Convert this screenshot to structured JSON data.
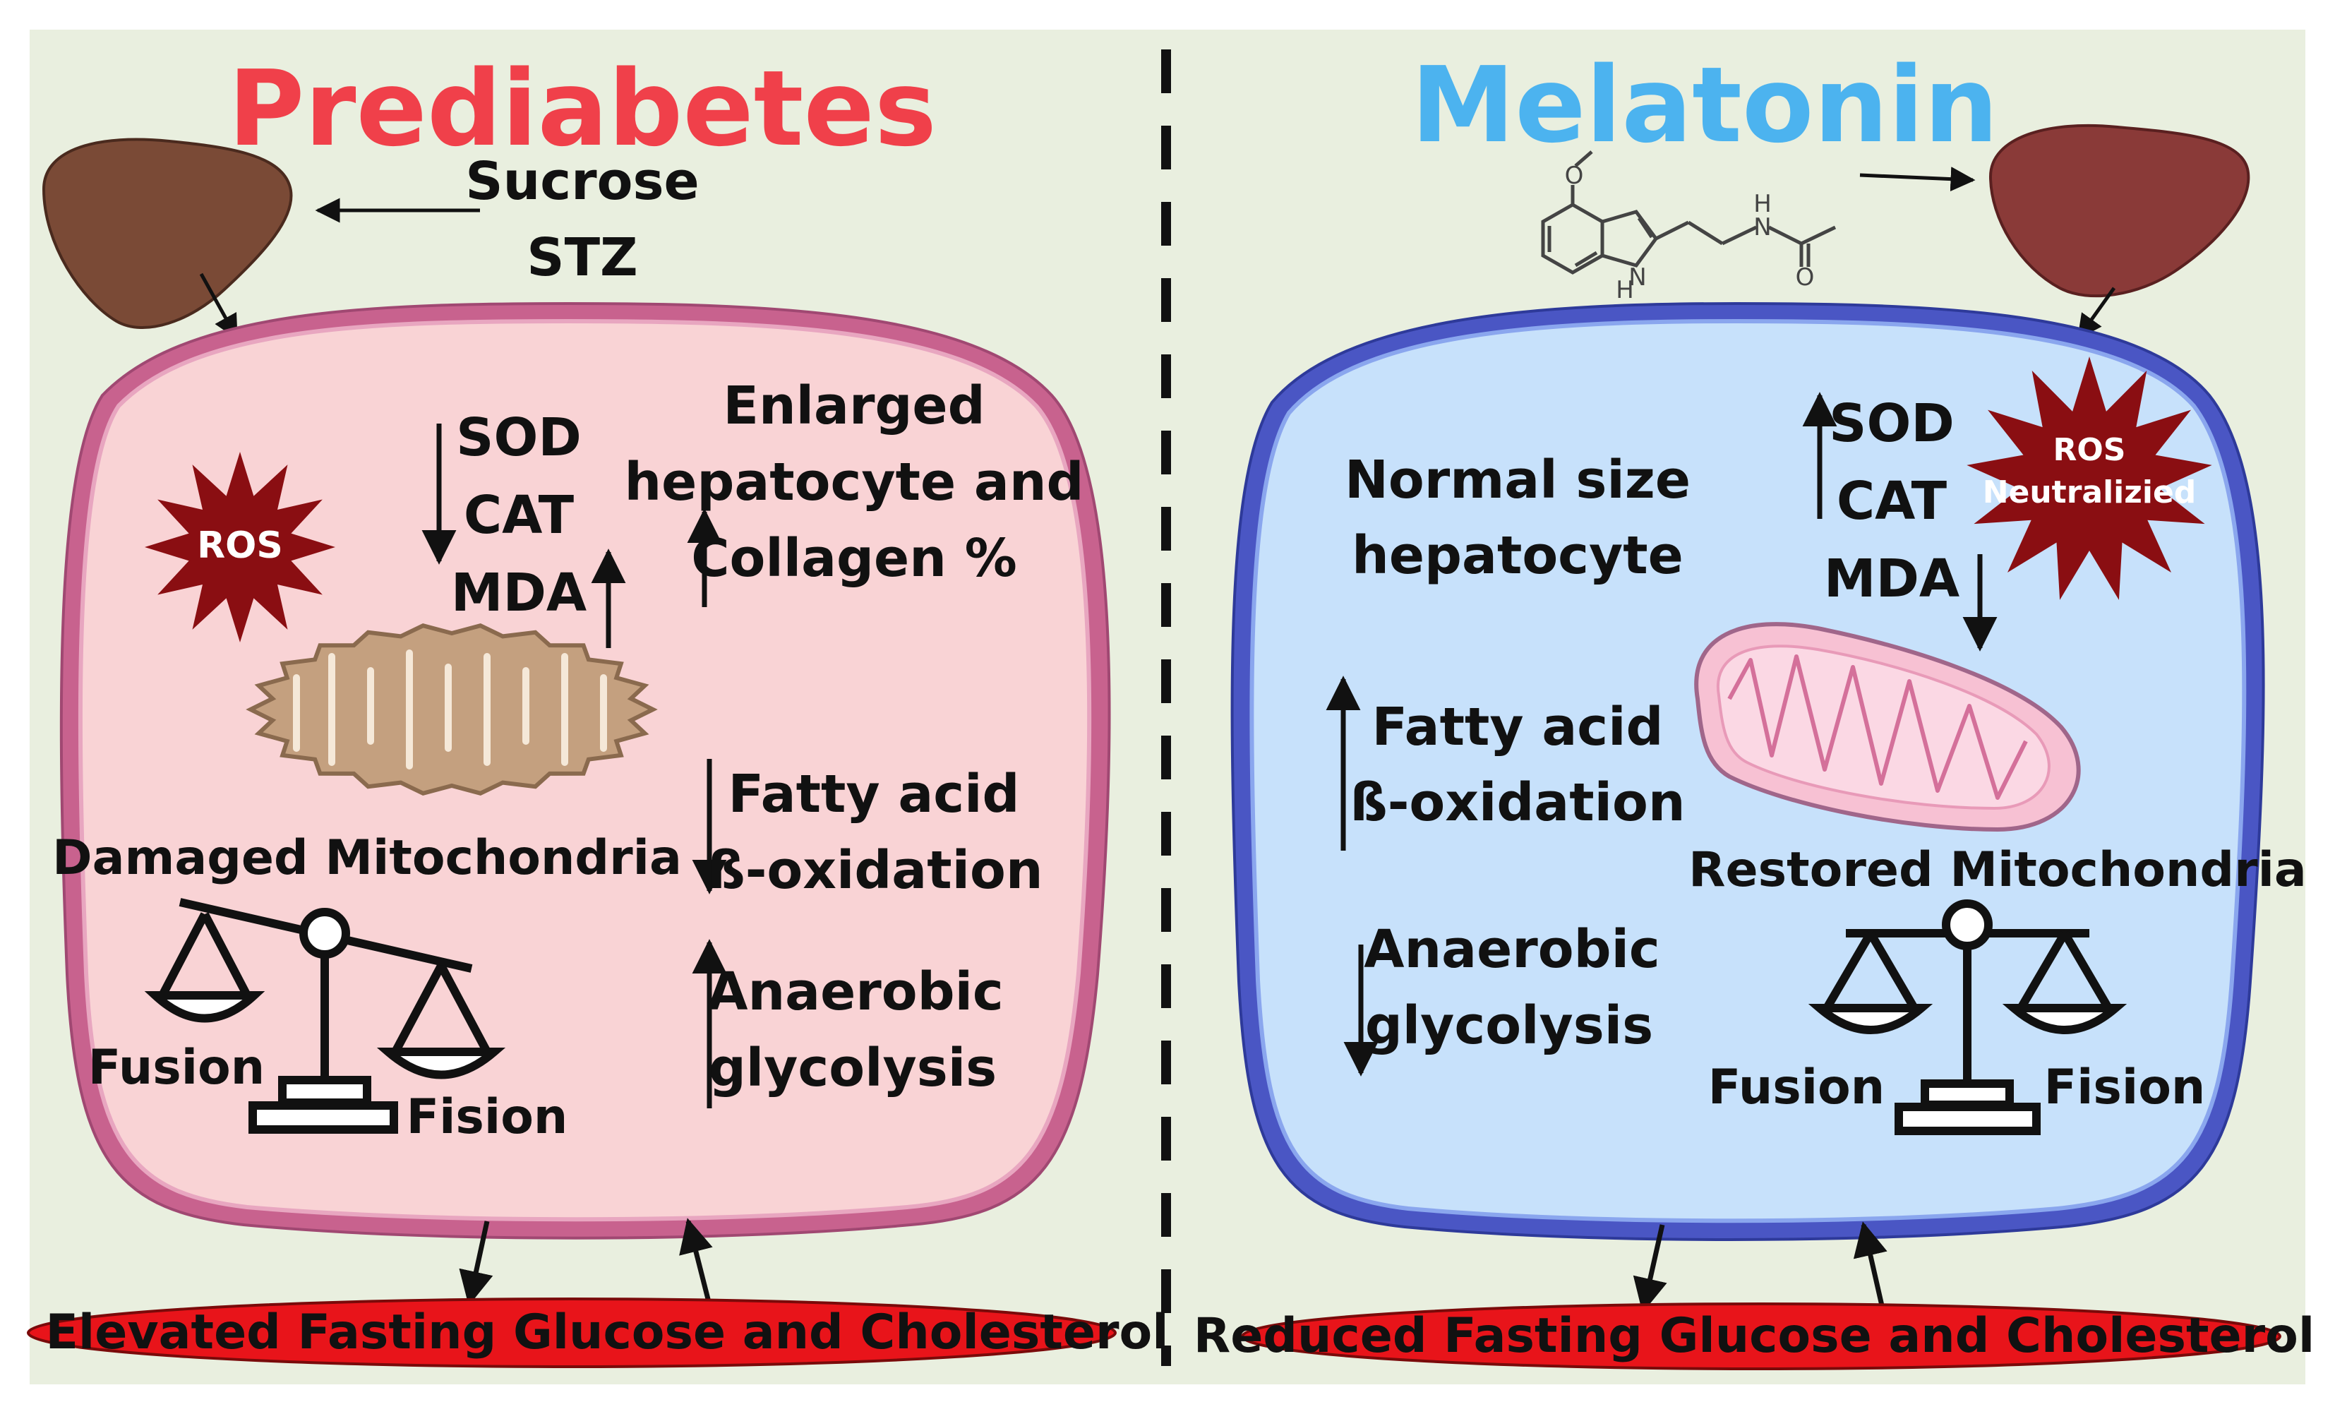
{
  "colors": {
    "background": "#e9efdf",
    "prediabetes_title": "#f0404a",
    "melatonin_title": "#4cb3ef",
    "left_cell_fill": "#f9d3d5",
    "left_cell_border": "#c8628e",
    "right_cell_fill": "#c7e1fb",
    "right_cell_border": "#4a56c4",
    "liver": "#7a4a36",
    "ros_star": "#8a0e12",
    "damaged_mito": "#c4a07f",
    "restored_mito": "#f7c1d3",
    "bar_fill": "#e8141a",
    "text": "#111111"
  },
  "left": {
    "title": "Prediabetes",
    "inducers": [
      "Sucrose",
      "STZ"
    ],
    "ros_label": "ROS",
    "markers": [
      "SOD",
      "CAT",
      "MDA"
    ],
    "hepatocyte": [
      "Enlarged",
      "hepatocyte and",
      "Collagen %"
    ],
    "mito_label": "Damaged Mitochondria",
    "fatty_acid": [
      "Fatty acid",
      "ß-oxidation"
    ],
    "glycolysis": [
      "Anaerobic",
      "glycolysis"
    ],
    "fusion_label": "Fusion",
    "fission_label": "Fision",
    "outcome": "Elevated Fasting Glucose and Cholesterol"
  },
  "right": {
    "title": "Melatonin",
    "molecule_atoms": {
      "oxygen_1": "O",
      "nitrogen_h": "H",
      "nitrogen": "N",
      "amide_h": "H",
      "amide_n": "N",
      "oxygen_2": "O"
    },
    "ros_label": [
      "ROS",
      "Neutralizied"
    ],
    "markers": [
      "SOD",
      "CAT",
      "MDA"
    ],
    "hepatocyte": [
      "Normal size",
      "hepatocyte"
    ],
    "mito_label": "Restored Mitochondria",
    "fatty_acid": [
      "Fatty acid",
      "ß-oxidation"
    ],
    "glycolysis": [
      "Anaerobic",
      "glycolysis"
    ],
    "fusion_label": "Fusion",
    "fission_label": "Fision",
    "outcome": "Reduced Fasting Glucose and Cholesterol"
  }
}
